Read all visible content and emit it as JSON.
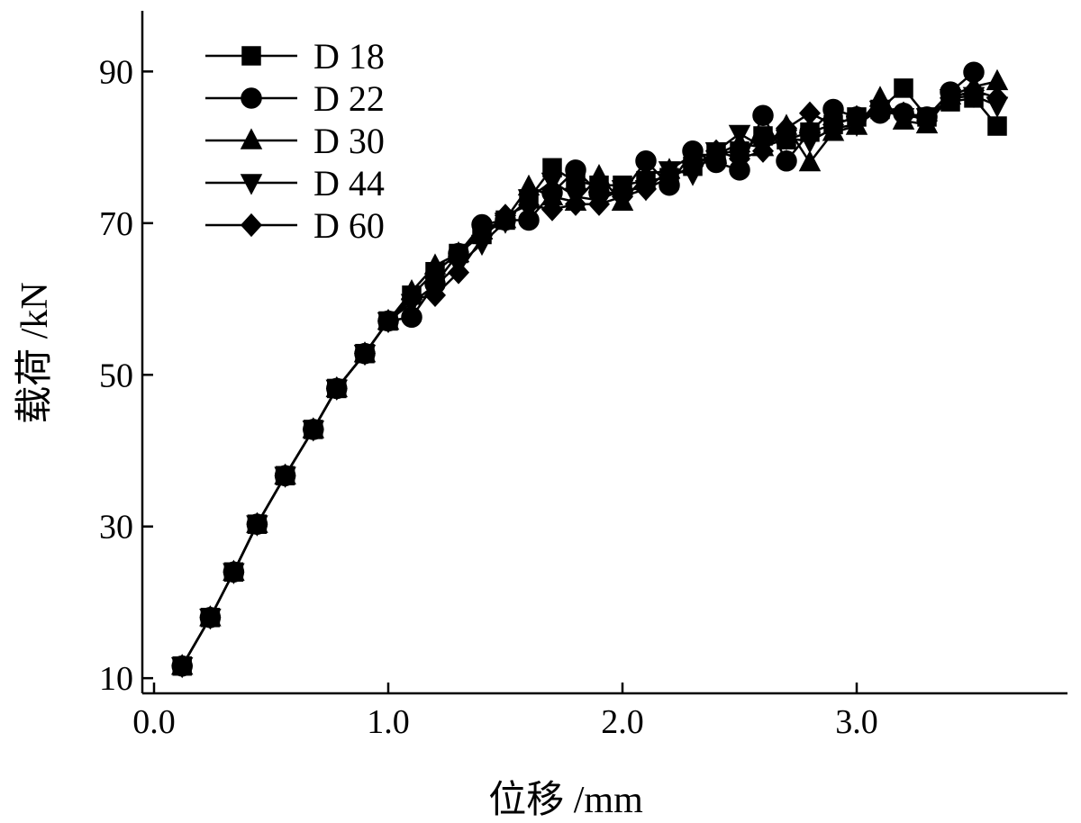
{
  "chart_data": {
    "type": "line",
    "xlabel": "位移 /mm",
    "ylabel": "载荷 /kN",
    "xlim": [
      -0.05,
      3.9
    ],
    "ylim": [
      8,
      98
    ],
    "xticks": [
      0.0,
      1.0,
      2.0,
      3.0
    ],
    "xtick_labels": [
      "0.0",
      "1.0",
      "2.0",
      "3.0"
    ],
    "yticks": [
      10,
      30,
      50,
      70,
      90
    ],
    "ytick_labels": [
      "10",
      "30",
      "50",
      "70",
      "90"
    ],
    "grid": false,
    "legend_position": "top-left",
    "series": [
      {
        "name": "D 18",
        "marker": "square",
        "x": [
          0.12,
          0.24,
          0.34,
          0.44,
          0.56,
          0.68,
          0.78,
          0.9,
          1.0,
          1.1,
          1.2,
          1.3,
          1.4,
          1.5,
          1.6,
          1.7,
          1.8,
          1.9,
          2.0,
          2.1,
          2.2,
          2.3,
          2.4,
          2.5,
          2.6,
          2.7,
          2.8,
          2.9,
          3.0,
          3.1,
          3.2,
          3.3,
          3.4,
          3.5,
          3.6
        ],
        "y": [
          11.6,
          18,
          24,
          30.3,
          36.7,
          42.8,
          48.2,
          52.8,
          57.1,
          60.5,
          63.6,
          66,
          68.5,
          70.4,
          73.2,
          77.3,
          75.5,
          75,
          75,
          75.6,
          76,
          77.5,
          79.2,
          79.5,
          81.5,
          81,
          82,
          83,
          84,
          85,
          87.8,
          84,
          86,
          86.5,
          82.8
        ]
      },
      {
        "name": "D 22",
        "marker": "circle",
        "x": [
          0.12,
          0.24,
          0.34,
          0.44,
          0.56,
          0.68,
          0.78,
          0.9,
          1.0,
          1.1,
          1.2,
          1.3,
          1.4,
          1.5,
          1.6,
          1.7,
          1.8,
          1.9,
          2.0,
          2.1,
          2.2,
          2.3,
          2.4,
          2.5,
          2.6,
          2.7,
          2.8,
          2.9,
          3.0,
          3.1,
          3.2,
          3.3,
          3.4,
          3.5
        ],
        "y": [
          11.6,
          18,
          24,
          30.3,
          36.7,
          42.8,
          48.2,
          52.8,
          57.1,
          57.6,
          62,
          66,
          69.8,
          70.4,
          70.4,
          74,
          77,
          74,
          74,
          78.2,
          75,
          79.5,
          78,
          77,
          84.2,
          78.2,
          82,
          85,
          84,
          84.5,
          84.5,
          84,
          87.3,
          89.9
        ]
      },
      {
        "name": "D 30",
        "marker": "triangle-up",
        "x": [
          0.12,
          0.24,
          0.34,
          0.44,
          0.56,
          0.68,
          0.78,
          0.9,
          1.0,
          1.1,
          1.2,
          1.3,
          1.4,
          1.5,
          1.6,
          1.7,
          1.8,
          1.9,
          2.0,
          2.1,
          2.2,
          2.3,
          2.4,
          2.5,
          2.6,
          2.7,
          2.8,
          2.9,
          3.0,
          3.1,
          3.2,
          3.3,
          3.4,
          3.5,
          3.6
        ],
        "y": [
          11.6,
          18,
          24,
          30.3,
          36.7,
          42.8,
          48.2,
          52.8,
          57.1,
          61,
          64.4,
          66,
          69,
          70.5,
          74.8,
          73.5,
          72.8,
          76.2,
          72.8,
          76.4,
          77,
          79,
          79,
          80.5,
          80,
          82.8,
          78,
          82,
          82.8,
          86.5,
          83.5,
          83,
          86.8,
          88,
          88.7
        ]
      },
      {
        "name": "D 44",
        "marker": "triangle-down",
        "x": [
          0.12,
          0.24,
          0.34,
          0.44,
          0.56,
          0.68,
          0.78,
          0.9,
          1.0,
          1.1,
          1.2,
          1.3,
          1.4,
          1.5,
          1.6,
          1.7,
          1.8,
          1.9,
          2.0,
          2.1,
          2.2,
          2.3,
          2.4,
          2.5,
          2.6,
          2.7,
          2.8,
          2.9,
          3.0,
          3.1,
          3.2,
          3.3,
          3.4,
          3.5,
          3.6
        ],
        "y": [
          11.6,
          18,
          24,
          30.3,
          36.7,
          42.8,
          48.2,
          52.8,
          57.1,
          59.5,
          61.8,
          64.5,
          67.3,
          70.2,
          73.3,
          75.5,
          73.5,
          73,
          74.5,
          74.5,
          77,
          76.5,
          79.5,
          81.8,
          80,
          81.2,
          80.8,
          82.5,
          83,
          85,
          84,
          84,
          86.5,
          86.8,
          85.5
        ]
      },
      {
        "name": "D 60",
        "marker": "diamond",
        "x": [
          0.12,
          0.24,
          0.34,
          0.44,
          0.56,
          0.68,
          0.78,
          0.9,
          1.0,
          1.1,
          1.2,
          1.3,
          1.4,
          1.5,
          1.6,
          1.7,
          1.8,
          1.9,
          2.0,
          2.1,
          2.2,
          2.3,
          2.4,
          2.5,
          2.6,
          2.7,
          2.8,
          2.9,
          3.0,
          3.1,
          3.2,
          3.3,
          3.4,
          3.5,
          3.6
        ],
        "y": [
          11.6,
          18,
          24,
          30.3,
          36.7,
          42.8,
          48.2,
          52.8,
          57.1,
          60,
          60.5,
          63.5,
          68,
          71,
          72.4,
          71.8,
          72.5,
          72.5,
          73.5,
          74.5,
          76,
          77.5,
          79.5,
          78.5,
          79.5,
          82.5,
          84.5,
          83,
          84,
          85,
          84.5,
          83.5,
          86.5,
          87.5,
          86.5
        ]
      }
    ]
  }
}
